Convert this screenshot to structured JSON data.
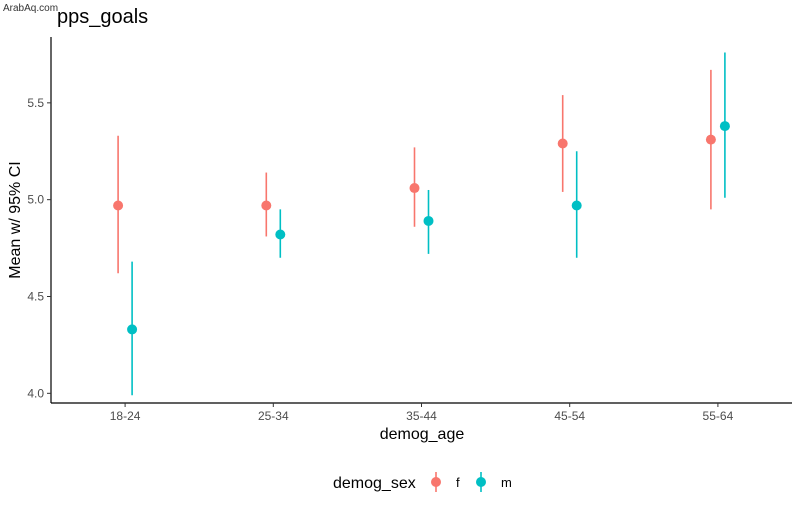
{
  "watermark": "ArabAq.com",
  "colors": {
    "f": "#F8766D",
    "m": "#00BFC4",
    "axis": "#000000",
    "tick_text": "#4d4d4d"
  },
  "chart_data": {
    "type": "scatter",
    "subtype": "pointrange",
    "title": "pps_goals",
    "xlabel": "demog_age",
    "ylabel": "Mean w/ 95% CI",
    "categories": [
      "18-24",
      "25-34",
      "35-44",
      "45-54",
      "55-64"
    ],
    "ylim": [
      3.95,
      5.84
    ],
    "yticks": [
      4.0,
      4.5,
      5.0,
      5.5
    ],
    "ytick_labels": [
      "4.0",
      "4.5",
      "5.0",
      "5.5"
    ],
    "grid": false,
    "legend": {
      "title": "demog_sex",
      "position": "bottom",
      "entries": [
        "f",
        "m"
      ]
    },
    "series": [
      {
        "name": "f",
        "color": "#F8766D",
        "mean": [
          4.97,
          4.97,
          5.06,
          5.29,
          5.31
        ],
        "lower": [
          4.62,
          4.81,
          4.86,
          5.04,
          4.95
        ],
        "upper": [
          5.33,
          5.14,
          5.27,
          5.54,
          5.67
        ]
      },
      {
        "name": "m",
        "color": "#00BFC4",
        "mean": [
          4.33,
          4.82,
          4.89,
          4.97,
          5.38
        ],
        "lower": [
          3.99,
          4.7,
          4.72,
          4.7,
          5.01
        ],
        "upper": [
          4.68,
          4.95,
          5.05,
          5.25,
          5.76
        ]
      }
    ]
  }
}
